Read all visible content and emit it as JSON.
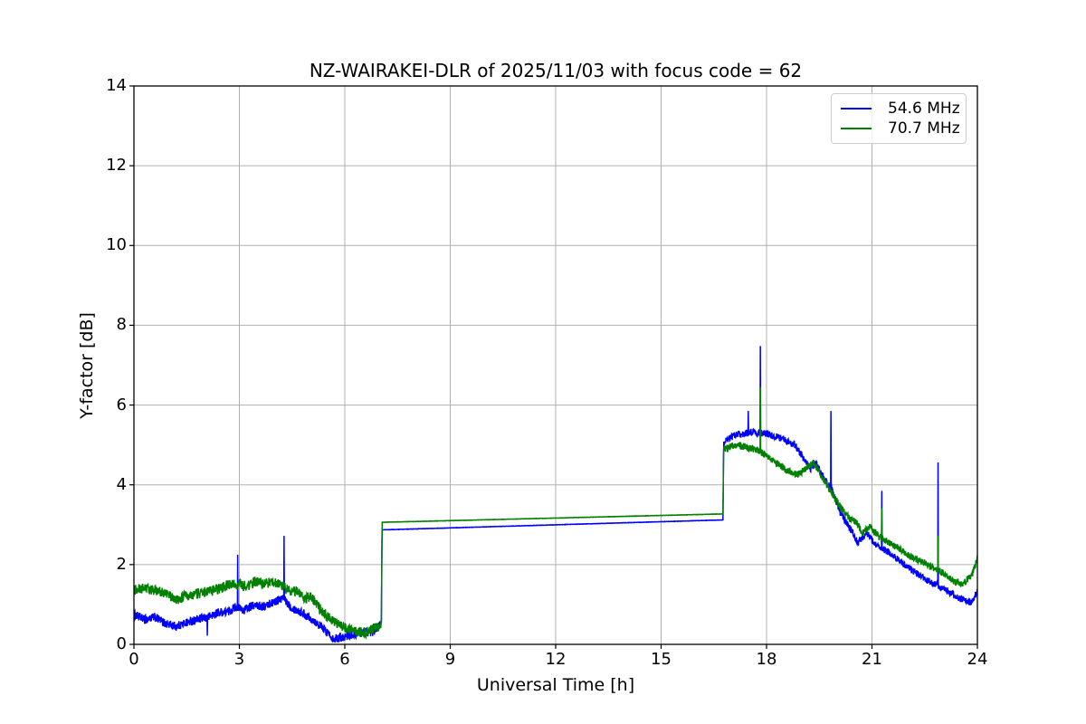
{
  "figure": {
    "background": "#ffffff"
  },
  "chart_data": {
    "type": "line",
    "title": "NZ-WAIRAKEI-DLR of 2025/11/03 with focus code = 62",
    "xlabel": "Universal Time [h]",
    "ylabel": "Y-factor [dB]",
    "xlim": [
      0,
      24
    ],
    "ylim": [
      0,
      14
    ],
    "x_ticks": [
      0,
      3,
      6,
      9,
      12,
      15,
      18,
      21,
      24
    ],
    "y_ticks": [
      0,
      2,
      4,
      6,
      8,
      10,
      12,
      14
    ],
    "grid": true,
    "grid_color": "#b0b0b0",
    "axis_color": "#000000",
    "background_color": "#ffffff",
    "legend_position": "upper right",
    "series": [
      {
        "name": "54.6 MHz",
        "color": "#0000ff",
        "waypoints": [
          [
            0,
            0.75
          ],
          [
            0.3,
            0.62
          ],
          [
            0.6,
            0.68
          ],
          [
            0.9,
            0.52
          ],
          [
            1.2,
            0.45
          ],
          [
            1.5,
            0.55
          ],
          [
            1.8,
            0.62
          ],
          [
            2.1,
            0.68
          ],
          [
            2.4,
            0.8
          ],
          [
            2.7,
            0.82
          ],
          [
            2.9,
            0.95
          ],
          [
            3.1,
            0.85
          ],
          [
            3.4,
            0.98
          ],
          [
            3.7,
            0.95
          ],
          [
            4.0,
            1.08
          ],
          [
            4.25,
            1.15
          ],
          [
            4.5,
            0.92
          ],
          [
            4.8,
            0.78
          ],
          [
            5.1,
            0.62
          ],
          [
            5.4,
            0.38
          ],
          [
            5.7,
            0.14
          ],
          [
            6.0,
            0.2
          ],
          [
            6.4,
            0.28
          ],
          [
            6.8,
            0.32
          ],
          [
            7.0,
            0.48
          ],
          [
            7.04,
            0.55
          ],
          [
            7.06,
            2.87
          ],
          [
            16.76,
            3.12
          ],
          [
            16.78,
            5.05
          ],
          [
            17.1,
            5.25
          ],
          [
            17.6,
            5.32
          ],
          [
            18.0,
            5.28
          ],
          [
            18.4,
            5.18
          ],
          [
            18.8,
            5.0
          ],
          [
            19.1,
            4.6
          ],
          [
            19.25,
            4.4
          ],
          [
            19.4,
            4.55
          ],
          [
            19.6,
            4.2
          ],
          [
            19.85,
            3.9
          ],
          [
            20.1,
            3.3
          ],
          [
            20.35,
            2.95
          ],
          [
            20.6,
            2.55
          ],
          [
            20.85,
            2.8
          ],
          [
            21.1,
            2.5
          ],
          [
            21.5,
            2.3
          ],
          [
            22.0,
            1.95
          ],
          [
            22.5,
            1.65
          ],
          [
            23.0,
            1.4
          ],
          [
            23.4,
            1.2
          ],
          [
            23.8,
            1.05
          ],
          [
            24,
            1.3
          ]
        ],
        "noise_zones": [
          {
            "t0": 0,
            "t1": 7.04,
            "amp": 0.11
          },
          {
            "t0": 7.04,
            "t1": 16.76,
            "amp": 0.004
          },
          {
            "t0": 16.76,
            "t1": 24.01,
            "amp": 0.09
          }
        ],
        "spikes": [
          [
            2.09,
            0.22
          ],
          [
            2.95,
            2.25
          ],
          [
            4.27,
            2.72
          ],
          [
            17.48,
            5.85
          ],
          [
            17.82,
            7.48
          ],
          [
            19.83,
            5.85
          ],
          [
            21.28,
            3.85
          ],
          [
            22.88,
            4.56
          ]
        ]
      },
      {
        "name": "70.7 MHz",
        "color": "#008000",
        "waypoints": [
          [
            0,
            1.35
          ],
          [
            0.3,
            1.42
          ],
          [
            0.6,
            1.35
          ],
          [
            0.9,
            1.28
          ],
          [
            1.2,
            1.12
          ],
          [
            1.5,
            1.22
          ],
          [
            1.8,
            1.28
          ],
          [
            2.1,
            1.32
          ],
          [
            2.4,
            1.38
          ],
          [
            2.7,
            1.5
          ],
          [
            3.0,
            1.52
          ],
          [
            3.2,
            1.45
          ],
          [
            3.45,
            1.58
          ],
          [
            3.7,
            1.52
          ],
          [
            3.95,
            1.58
          ],
          [
            4.2,
            1.48
          ],
          [
            4.45,
            1.32
          ],
          [
            4.65,
            1.35
          ],
          [
            4.85,
            1.15
          ],
          [
            5.05,
            1.18
          ],
          [
            5.3,
            0.88
          ],
          [
            5.6,
            0.62
          ],
          [
            5.9,
            0.45
          ],
          [
            6.2,
            0.33
          ],
          [
            6.6,
            0.3
          ],
          [
            6.95,
            0.45
          ],
          [
            7.04,
            0.55
          ],
          [
            7.06,
            3.06
          ],
          [
            16.76,
            3.27
          ],
          [
            16.78,
            4.88
          ],
          [
            17.1,
            5.0
          ],
          [
            17.4,
            4.95
          ],
          [
            17.8,
            4.85
          ],
          [
            18.2,
            4.6
          ],
          [
            18.6,
            4.35
          ],
          [
            18.9,
            4.25
          ],
          [
            19.15,
            4.45
          ],
          [
            19.35,
            4.55
          ],
          [
            19.6,
            4.15
          ],
          [
            19.85,
            3.8
          ],
          [
            20.1,
            3.45
          ],
          [
            20.35,
            3.15
          ],
          [
            20.55,
            3.05
          ],
          [
            20.75,
            2.8
          ],
          [
            20.95,
            2.95
          ],
          [
            21.2,
            2.7
          ],
          [
            21.6,
            2.5
          ],
          [
            22.1,
            2.2
          ],
          [
            22.6,
            2.0
          ],
          [
            23.0,
            1.8
          ],
          [
            23.3,
            1.6
          ],
          [
            23.6,
            1.52
          ],
          [
            23.85,
            1.75
          ],
          [
            24,
            2.15
          ]
        ],
        "noise_zones": [
          {
            "t0": 0,
            "t1": 7.04,
            "amp": 0.13
          },
          {
            "t0": 7.04,
            "t1": 16.76,
            "amp": 0.004
          },
          {
            "t0": 16.76,
            "t1": 24.01,
            "amp": 0.09
          }
        ],
        "spikes": [
          [
            17.82,
            6.45
          ],
          [
            21.28,
            3.42
          ],
          [
            22.88,
            2.72
          ]
        ]
      }
    ]
  }
}
